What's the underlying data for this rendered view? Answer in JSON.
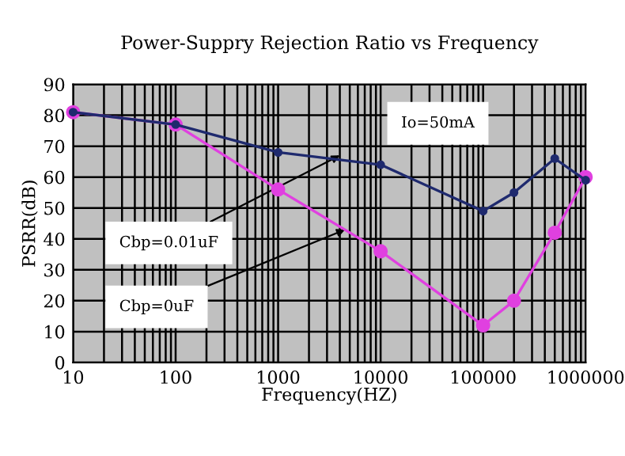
{
  "chart_data": {
    "type": "line",
    "title": "Power-Suppry Rejection Ratio vs Frequency",
    "xlabel": "Frequency(HZ)",
    "ylabel": "PSRR(dB)",
    "x": [
      10,
      100,
      1000,
      10000,
      100000,
      200000,
      500000,
      1000000
    ],
    "series": [
      {
        "color": "#1f2a6e",
        "values": [
          81,
          77,
          68,
          64,
          49,
          55,
          66,
          59
        ]
      },
      {
        "color": "#e040e0",
        "values": [
          81,
          77,
          56,
          36,
          12,
          20,
          42,
          60
        ]
      }
    ],
    "log": "x",
    "xlim": [
      10,
      1000000
    ],
    "xticks": [
      10,
      100,
      1000,
      10000,
      100000,
      1000000
    ],
    "ylim": [
      0,
      90
    ],
    "yticks": [
      0,
      10,
      20,
      30,
      40,
      50,
      60,
      70,
      80,
      90
    ],
    "grid": true,
    "marker": "circle",
    "line_style": "solid",
    "legend": false,
    "annotations": [
      {
        "text": "Cbp=0.01uF",
        "x": 4000,
        "y": 67
      },
      {
        "text": "Cbp=0uF",
        "x": 4500,
        "y": 43
      },
      "Io=50mA"
    ]
  }
}
